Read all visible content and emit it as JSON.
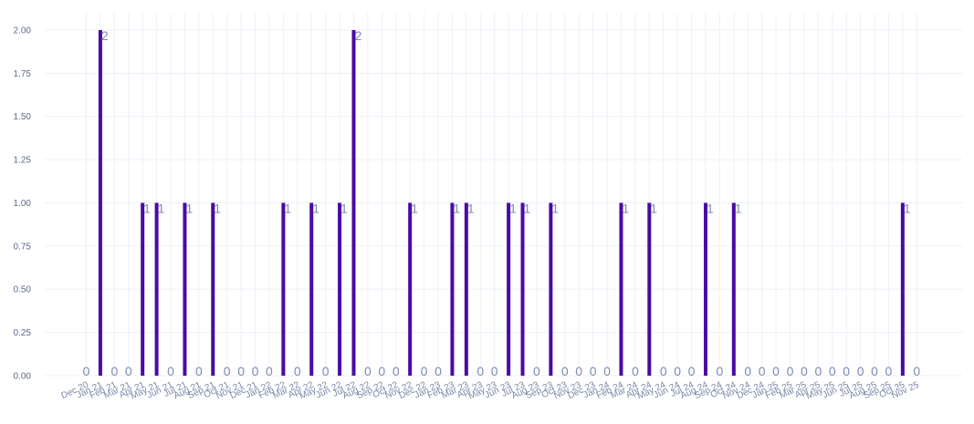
{
  "chart_data": {
    "type": "bar",
    "title": "",
    "xlabel": "",
    "ylabel": "",
    "ylim": [
      0,
      2.1
    ],
    "yticks": [
      "0.00",
      "0.25",
      "0.50",
      "0.75",
      "1.00",
      "1.25",
      "1.50",
      "1.75",
      "2.00"
    ],
    "ytick_values": [
      0,
      0.25,
      0.5,
      0.75,
      1.0,
      1.25,
      1.5,
      1.75,
      2.0
    ],
    "grid": true,
    "colors": {
      "bar": "#4b0aa3",
      "label": "#7f8ab0",
      "grid": "#eef0f8"
    },
    "categories": [
      "Dec 20",
      "Jan 21",
      "Feb 21",
      "Mar 21",
      "Apr 21",
      "May 21",
      "Jun 21",
      "Jul 21",
      "Aug 21",
      "Sep 21",
      "Oct 21",
      "Nov 21",
      "Dec 21",
      "Jan 22",
      "Feb 22",
      "Mar 22",
      "Apr 22",
      "May 22",
      "Jun 22",
      "Jul 22",
      "Aug 22",
      "Sep 22",
      "Oct 22",
      "Nov 22",
      "Dec 22",
      "Jan 23",
      "Feb 23",
      "Mar 23",
      "Apr 23",
      "May 23",
      "Jun 23",
      "Jul 23",
      "Aug 23",
      "Sep 23",
      "Oct 23",
      "Nov 23",
      "Dec 23",
      "Jan 24",
      "Feb 24",
      "Mar 24",
      "Apr 24",
      "May 24",
      "Jun 24",
      "Jul 24",
      "Aug 24",
      "Sep 24",
      "Oct 24",
      "Nov 24",
      "Dec 24",
      "Jan 25",
      "Feb 25",
      "Mar 25",
      "Apr 25",
      "May 25",
      "Jun 25",
      "Jul 25",
      "Aug 25",
      "Sep 25",
      "Oct 25",
      "Nov 25"
    ],
    "values": [
      0,
      2,
      0,
      0,
      1,
      1,
      0,
      1,
      0,
      1,
      0,
      0,
      0,
      0,
      1,
      0,
      1,
      0,
      1,
      2,
      0,
      0,
      0,
      1,
      0,
      0,
      1,
      1,
      0,
      0,
      1,
      1,
      0,
      1,
      0,
      0,
      0,
      0,
      1,
      0,
      1,
      0,
      0,
      0,
      1,
      0,
      1,
      0,
      0,
      0,
      0,
      0,
      0,
      0,
      0,
      0,
      0,
      0,
      1,
      0
    ]
  }
}
